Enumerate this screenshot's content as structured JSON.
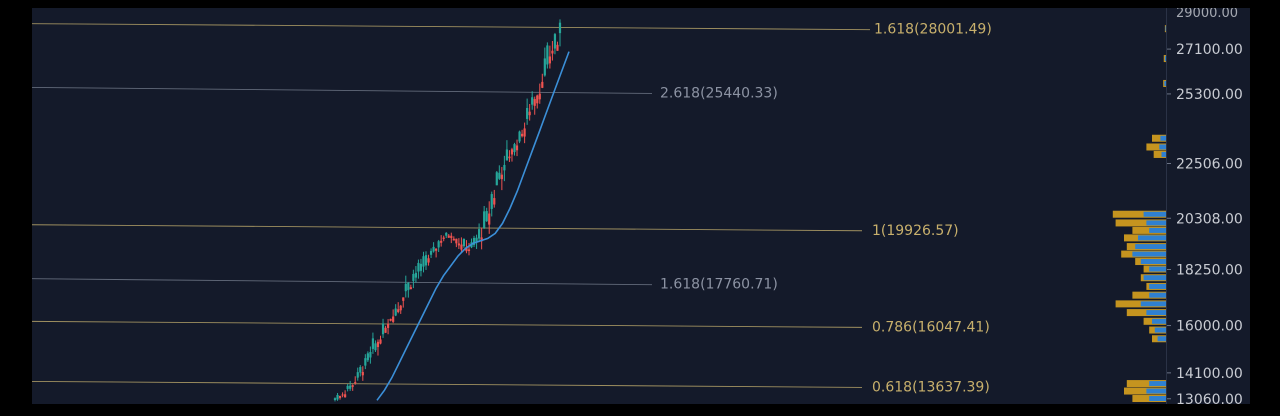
{
  "chart_data": {
    "type": "candlestick",
    "y_axis": {
      "ticks": [
        {
          "value": 27100,
          "label": "27100.00"
        },
        {
          "value": 25300,
          "label": "25300.00"
        },
        {
          "value": 22506,
          "label": "22506.00"
        },
        {
          "value": 20308,
          "label": "20308.00"
        },
        {
          "value": 18250,
          "label": "18250.00"
        },
        {
          "value": 16000,
          "label": "16000.00"
        },
        {
          "value": 14100,
          "label": "14100.00"
        },
        {
          "value": 13060,
          "label": "13060.00"
        }
      ],
      "top_label": "29000.00",
      "ylim": [
        12850,
        28750
      ]
    },
    "fib_levels": [
      {
        "ratio_label": "1.618",
        "value": 28001.49,
        "label": "1.618(28001.49)",
        "color": "#b9a66a",
        "label_color": "#c8b06c"
      },
      {
        "ratio_label": "2.618",
        "value": 25440.33,
        "label": "2.618(25440.33)",
        "color": "#707888",
        "label_color": "#8c93a3"
      },
      {
        "ratio_label": "1",
        "value": 19926.57,
        "label": "1(19926.57)",
        "color": "#b9a66a",
        "label_color": "#c8b06c"
      },
      {
        "ratio_label": "1.618",
        "value": 17760.71,
        "label": "1.618(17760.71)",
        "color": "#707888",
        "label_color": "#8c93a3"
      },
      {
        "ratio_label": "0.786",
        "value": 16047.41,
        "label": "0.786(16047.41)",
        "color": "#b9a66a",
        "label_color": "#c8b06c"
      },
      {
        "ratio_label": "0.618",
        "value": 13637.39,
        "label": "0.618(13637.39)",
        "color": "#b9a66a",
        "label_color": "#c8b06c"
      }
    ],
    "candles_anchor": [
      [
        12900,
        13200
      ],
      [
        13100,
        13500
      ],
      [
        13400,
        13900
      ],
      [
        13800,
        14700
      ],
      [
        14500,
        15200
      ],
      [
        15000,
        15900
      ],
      [
        15700,
        16400
      ],
      [
        16200,
        17100
      ],
      [
        16900,
        17800
      ],
      [
        17500,
        18300
      ],
      [
        18000,
        18700
      ],
      [
        18500,
        19200
      ],
      [
        19000,
        19700
      ],
      [
        19500,
        19950
      ],
      [
        19200,
        19900
      ],
      [
        18800,
        19600
      ],
      [
        18900,
        19500
      ],
      [
        19300,
        20400
      ],
      [
        20200,
        21800
      ],
      [
        21500,
        22700
      ],
      [
        22300,
        23300
      ],
      [
        22900,
        24000
      ],
      [
        23600,
        24900
      ],
      [
        24500,
        25700
      ],
      [
        25300,
        26800
      ],
      [
        26400,
        27600
      ],
      [
        27200,
        28600
      ]
    ],
    "moving_average": [
      13000,
      13400,
      13900,
      14500,
      15100,
      15700,
      16300,
      16900,
      17500,
      18000,
      18400,
      18800,
      19100,
      19300,
      19400,
      19500,
      19700,
      20100,
      20700,
      21400,
      22200,
      23000,
      23800,
      24600,
      25400,
      26200,
      27000
    ],
    "volume_profile": {
      "bins": [
        {
          "price": 27900,
          "amber": 0.02,
          "blue": 0.01
        },
        {
          "price": 26700,
          "amber": 0.04,
          "blue": 0.02
        },
        {
          "price": 25700,
          "amber": 0.05,
          "blue": 0.03
        },
        {
          "price": 23500,
          "amber": 0.25,
          "blue": 0.1
        },
        {
          "price": 23150,
          "amber": 0.35,
          "blue": 0.12
        },
        {
          "price": 22850,
          "amber": 0.22,
          "blue": 0.08
        },
        {
          "price": 20450,
          "amber": 0.95,
          "blue": 0.4
        },
        {
          "price": 20100,
          "amber": 0.9,
          "blue": 0.35
        },
        {
          "price": 19800,
          "amber": 0.6,
          "blue": 0.3
        },
        {
          "price": 19500,
          "amber": 0.75,
          "blue": 0.5
        },
        {
          "price": 19150,
          "amber": 0.7,
          "blue": 0.55
        },
        {
          "price": 18850,
          "amber": 0.8,
          "blue": 0.6
        },
        {
          "price": 18550,
          "amber": 0.55,
          "blue": 0.45
        },
        {
          "price": 18250,
          "amber": 0.4,
          "blue": 0.3
        },
        {
          "price": 17900,
          "amber": 0.45,
          "blue": 0.4
        },
        {
          "price": 17550,
          "amber": 0.35,
          "blue": 0.3
        },
        {
          "price": 17200,
          "amber": 0.6,
          "blue": 0.3
        },
        {
          "price": 16850,
          "amber": 0.9,
          "blue": 0.45
        },
        {
          "price": 16500,
          "amber": 0.7,
          "blue": 0.35
        },
        {
          "price": 16150,
          "amber": 0.4,
          "blue": 0.25
        },
        {
          "price": 15800,
          "amber": 0.3,
          "blue": 0.2
        },
        {
          "price": 15450,
          "amber": 0.25,
          "blue": 0.15
        },
        {
          "price": 13650,
          "amber": 0.7,
          "blue": 0.3
        },
        {
          "price": 13350,
          "amber": 0.75,
          "blue": 0.35
        },
        {
          "price": 13050,
          "amber": 0.6,
          "blue": 0.3
        }
      ]
    },
    "colors": {
      "background": "#141a2a",
      "up": "#26a69a",
      "down": "#ef5350",
      "ma": "#3b8fd8",
      "axis_text": "#c9ccd3",
      "vp_amber": "#d8a21e",
      "vp_blue": "#2f80d0"
    }
  }
}
